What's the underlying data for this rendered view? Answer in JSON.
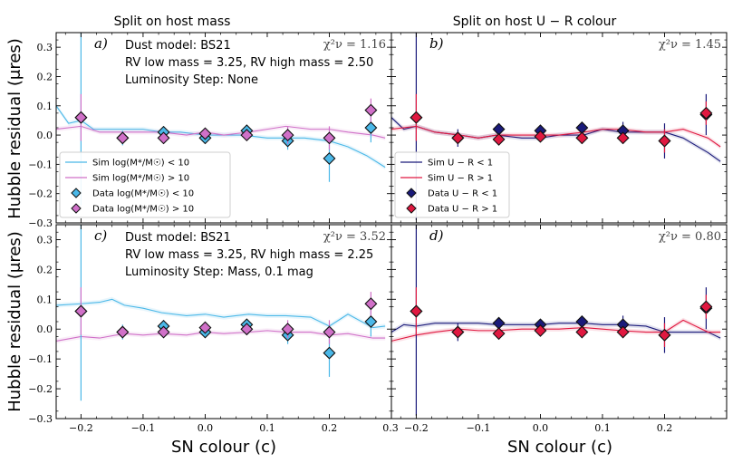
{
  "chart_data": {
    "type": "scatter",
    "ylabel": "Hubble residual (μres)",
    "xlabel": "SN colour (c)",
    "xlim": [
      -0.24,
      0.3
    ],
    "ylim": [
      -0.3,
      0.35
    ],
    "xticks": [
      -0.2,
      -0.1,
      0.0,
      0.1,
      0.2
    ],
    "xtick_labels": [
      "−0.2",
      "−0.1",
      "0.0",
      "0.1",
      "0.2"
    ],
    "xtick_edge_label": "0.3",
    "yticks": [
      -0.3,
      -0.2,
      -0.1,
      0.0,
      0.1,
      0.2,
      0.3
    ],
    "ytick_labels": [
      "−0.3",
      "−0.2",
      "−0.1",
      "0.0",
      "0.1",
      "0.2",
      "0.3"
    ],
    "column_titles": [
      "Split on host mass",
      "Split on host U − R colour"
    ],
    "colors": {
      "low_mass": "#4ab8e8",
      "high_mass": "#d070c8",
      "blue_host": "#1a1a7a",
      "red_host": "#e01840"
    },
    "panels": [
      {
        "id": "a",
        "label": "a)",
        "chi2": "χ²ν = 1.16",
        "notes": [
          "Dust model: BS21",
          "RV low mass = 3.25, RV high mass = 2.50",
          "Luminosity Step: None"
        ],
        "legend": [
          "Sim log(M*/M☉) < 10",
          "Sim log(M*/M☉) > 10",
          "Data log(M*/M☉) < 10",
          "Data log(M*/M☉) > 10"
        ],
        "series": [
          {
            "name": "Sim log(M*/M☉) < 10",
            "kind": "line",
            "color": "low_mass",
            "x": [
              -0.24,
              -0.22,
              -0.2,
              -0.18,
              -0.16,
              -0.13,
              -0.1,
              -0.07,
              -0.04,
              0.0,
              0.03,
              0.06,
              0.1,
              0.13,
              0.16,
              0.2,
              0.23,
              0.26,
              0.29
            ],
            "y": [
              0.1,
              0.04,
              0.05,
              0.02,
              0.02,
              0.02,
              0.02,
              0.01,
              0.01,
              0.0,
              0.0,
              0.0,
              -0.01,
              -0.01,
              -0.01,
              -0.02,
              -0.04,
              -0.07,
              -0.11
            ]
          },
          {
            "name": "Sim log(M*/M☉) > 10",
            "kind": "line",
            "color": "high_mass",
            "x": [
              -0.24,
              -0.2,
              -0.17,
              -0.13,
              -0.1,
              -0.07,
              -0.03,
              0.0,
              0.03,
              0.07,
              0.1,
              0.13,
              0.17,
              0.2,
              0.23,
              0.27,
              0.29
            ],
            "y": [
              0.02,
              0.03,
              0.01,
              0.01,
              0.01,
              0.01,
              0.0,
              0.01,
              0.0,
              0.01,
              0.02,
              0.03,
              0.02,
              0.02,
              0.01,
              0.0,
              -0.01
            ]
          },
          {
            "name": "Data log(M*/M☉) < 10",
            "kind": "points",
            "color": "low_mass",
            "x": [
              -0.2,
              -0.133,
              -0.067,
              0.0,
              0.067,
              0.133,
              0.2,
              0.267
            ],
            "y": [
              0.06,
              -0.01,
              0.01,
              -0.01,
              0.015,
              -0.02,
              -0.08,
              0.025
            ],
            "err": [
              0.3,
              0.025,
              0.02,
              0.015,
              0.02,
              0.03,
              0.08,
              0.05
            ]
          },
          {
            "name": "Data log(M*/M☉) > 10",
            "kind": "points",
            "color": "high_mass",
            "x": [
              -0.2,
              -0.133,
              -0.067,
              0.0,
              0.067,
              0.133,
              0.2,
              0.267
            ],
            "y": [
              0.06,
              -0.01,
              -0.01,
              0.005,
              0.0,
              0.0,
              -0.01,
              0.085
            ],
            "err": [
              0.08,
              0.02,
              0.02,
              0.015,
              0.02,
              0.03,
              0.04,
              0.04
            ]
          }
        ]
      },
      {
        "id": "b",
        "label": "b)",
        "chi2": "χ²ν = 1.45",
        "notes": [],
        "legend": [
          "Sim U − R < 1",
          "Sim U − R > 1",
          "Data U − R < 1",
          "Data U − R > 1"
        ],
        "series": [
          {
            "name": "Sim U − R < 1",
            "kind": "line",
            "color": "blue_host",
            "x": [
              -0.24,
              -0.22,
              -0.2,
              -0.17,
              -0.13,
              -0.1,
              -0.07,
              -0.03,
              0.0,
              0.03,
              0.07,
              0.1,
              0.13,
              0.17,
              0.2,
              0.23,
              0.27,
              0.29
            ],
            "y": [
              0.06,
              0.02,
              0.03,
              0.01,
              0.0,
              -0.01,
              0.0,
              -0.01,
              -0.01,
              0.0,
              0.0,
              0.02,
              0.01,
              0.01,
              0.01,
              -0.01,
              -0.06,
              -0.09
            ]
          },
          {
            "name": "Sim U − R > 1",
            "kind": "line",
            "color": "red_host",
            "x": [
              -0.24,
              -0.2,
              -0.17,
              -0.13,
              -0.1,
              -0.07,
              -0.03,
              0.0,
              0.03,
              0.07,
              0.1,
              0.13,
              0.17,
              0.2,
              0.23,
              0.27,
              0.29
            ],
            "y": [
              0.02,
              0.03,
              0.01,
              0.0,
              -0.01,
              0.0,
              0.0,
              0.0,
              0.0,
              0.01,
              0.02,
              0.02,
              0.01,
              0.01,
              0.02,
              -0.01,
              -0.04
            ]
          },
          {
            "name": "Data U − R < 1",
            "kind": "points",
            "color": "blue_host",
            "x": [
              -0.2,
              -0.133,
              -0.067,
              0.0,
              0.067,
              0.133,
              0.2,
              0.267
            ],
            "y": [
              0.06,
              -0.01,
              0.02,
              0.015,
              0.025,
              0.015,
              -0.02,
              0.07
            ],
            "err": [
              0.35,
              0.03,
              0.02,
              0.015,
              0.02,
              0.03,
              0.06,
              0.07
            ]
          },
          {
            "name": "Data U − R > 1",
            "kind": "points",
            "color": "red_host",
            "x": [
              -0.2,
              -0.133,
              -0.067,
              0.0,
              0.067,
              0.133,
              0.2,
              0.267
            ],
            "y": [
              0.06,
              -0.01,
              -0.015,
              -0.005,
              -0.01,
              -0.01,
              -0.02,
              0.075
            ],
            "err": [
              0.08,
              0.02,
              0.02,
              0.015,
              0.02,
              0.02,
              0.04,
              0.04
            ]
          }
        ]
      },
      {
        "id": "c",
        "label": "c)",
        "chi2": "χ²ν = 3.52",
        "notes": [
          "Dust model: BS21",
          "RV low mass = 3.25, RV high mass = 2.25",
          "Luminosity Step: Mass, 0.1 mag"
        ],
        "legend": [],
        "series": [
          {
            "name": "Sim log(M*/M☉) < 10",
            "kind": "line",
            "color": "low_mass",
            "x": [
              -0.24,
              -0.2,
              -0.17,
              -0.15,
              -0.13,
              -0.1,
              -0.07,
              -0.03,
              0.0,
              0.03,
              0.07,
              0.1,
              0.13,
              0.17,
              0.2,
              0.23,
              0.27,
              0.29
            ],
            "y": [
              0.08,
              0.085,
              0.09,
              0.1,
              0.08,
              0.07,
              0.055,
              0.045,
              0.05,
              0.04,
              0.05,
              0.045,
              0.045,
              0.04,
              0.01,
              0.05,
              0.005,
              0.01
            ]
          },
          {
            "name": "Sim log(M*/M☉) > 10",
            "kind": "line",
            "color": "high_mass",
            "x": [
              -0.24,
              -0.2,
              -0.17,
              -0.13,
              -0.1,
              -0.07,
              -0.03,
              0.0,
              0.03,
              0.07,
              0.1,
              0.13,
              0.17,
              0.2,
              0.23,
              0.27,
              0.29
            ],
            "y": [
              -0.04,
              -0.025,
              -0.03,
              -0.015,
              -0.02,
              -0.015,
              -0.02,
              -0.01,
              -0.015,
              -0.01,
              -0.005,
              -0.01,
              -0.01,
              -0.02,
              -0.015,
              -0.03,
              -0.03
            ]
          },
          {
            "name": "Data log(M*/M☉) < 10",
            "kind": "points",
            "color": "low_mass",
            "x": [
              -0.2,
              -0.133,
              -0.067,
              0.0,
              0.067,
              0.133,
              0.2,
              0.267
            ],
            "y": [
              0.06,
              -0.01,
              0.01,
              -0.01,
              0.015,
              -0.02,
              -0.08,
              0.025
            ],
            "err": [
              0.3,
              0.025,
              0.02,
              0.015,
              0.02,
              0.03,
              0.08,
              0.05
            ]
          },
          {
            "name": "Data log(M*/M☉) > 10",
            "kind": "points",
            "color": "high_mass",
            "x": [
              -0.2,
              -0.133,
              -0.067,
              0.0,
              0.067,
              0.133,
              0.2,
              0.267
            ],
            "y": [
              0.06,
              -0.01,
              -0.01,
              0.005,
              0.0,
              0.0,
              -0.01,
              0.085
            ],
            "err": [
              0.08,
              0.02,
              0.02,
              0.015,
              0.02,
              0.03,
              0.04,
              0.04
            ]
          }
        ]
      },
      {
        "id": "d",
        "label": "d)",
        "chi2": "χ²ν = 0.80",
        "notes": [],
        "legend": [],
        "series": [
          {
            "name": "Sim U − R < 1",
            "kind": "line",
            "color": "blue_host",
            "x": [
              -0.24,
              -0.22,
              -0.2,
              -0.17,
              -0.13,
              -0.1,
              -0.07,
              -0.03,
              0.0,
              0.03,
              0.07,
              0.1,
              0.13,
              0.17,
              0.2,
              0.23,
              0.27,
              0.29
            ],
            "y": [
              -0.01,
              0.015,
              0.01,
              0.02,
              0.02,
              0.02,
              0.015,
              0.015,
              0.015,
              0.02,
              0.02,
              0.015,
              0.015,
              0.01,
              -0.01,
              -0.01,
              -0.01,
              -0.03
            ]
          },
          {
            "name": "Sim U − R > 1",
            "kind": "line",
            "color": "red_host",
            "x": [
              -0.24,
              -0.2,
              -0.17,
              -0.13,
              -0.1,
              -0.07,
              -0.03,
              0.0,
              0.03,
              0.07,
              0.1,
              0.13,
              0.17,
              0.2,
              0.23,
              0.27,
              0.29
            ],
            "y": [
              -0.04,
              -0.02,
              -0.01,
              0.0,
              -0.005,
              -0.005,
              0.0,
              0.0,
              0.0,
              0.005,
              0.0,
              -0.005,
              -0.01,
              -0.01,
              0.03,
              -0.01,
              -0.01
            ]
          },
          {
            "name": "Data U − R < 1",
            "kind": "points",
            "color": "blue_host",
            "x": [
              -0.2,
              -0.133,
              -0.067,
              0.0,
              0.067,
              0.133,
              0.2,
              0.267
            ],
            "y": [
              0.06,
              -0.01,
              0.02,
              0.015,
              0.025,
              0.015,
              -0.02,
              0.07
            ],
            "err": [
              0.35,
              0.03,
              0.02,
              0.015,
              0.02,
              0.03,
              0.06,
              0.07
            ]
          },
          {
            "name": "Data U − R > 1",
            "kind": "points",
            "color": "red_host",
            "x": [
              -0.2,
              -0.133,
              -0.067,
              0.0,
              0.067,
              0.133,
              0.2,
              0.267
            ],
            "y": [
              0.06,
              -0.01,
              -0.015,
              -0.005,
              -0.01,
              -0.01,
              -0.02,
              0.075
            ],
            "err": [
              0.08,
              0.02,
              0.02,
              0.015,
              0.02,
              0.02,
              0.04,
              0.04
            ]
          }
        ]
      }
    ]
  }
}
